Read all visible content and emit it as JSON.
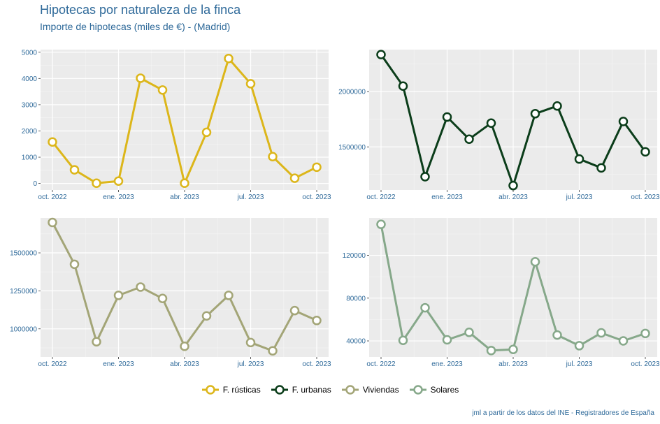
{
  "title": "Hipotecas por naturaleza de la finca",
  "subtitle": "Importe de hipotecas (miles de €) - (Madrid)",
  "caption": "jml a partir de los datos del INE - Registradores de España",
  "chart_data": [
    {
      "type": "line",
      "series_name": "F. rústicas",
      "color": "#dcb61a",
      "x": [
        "2022-10",
        "2022-11",
        "2022-12",
        "2023-01",
        "2023-02",
        "2023-03",
        "2023-04",
        "2023-05",
        "2023-06",
        "2023-07",
        "2023-08",
        "2023-09",
        "2023-10"
      ],
      "values": [
        1580,
        520,
        10,
        90,
        4010,
        3560,
        10,
        1950,
        4760,
        3800,
        1020,
        200,
        620
      ],
      "ylim": [
        -250,
        5100
      ],
      "yticks": [
        0,
        1000,
        2000,
        3000,
        4000,
        5000
      ],
      "ytick_labels": [
        "0",
        "1000",
        "2000",
        "3000",
        "4000",
        "5000"
      ],
      "xticks": [
        "oct. 2022",
        "ene. 2023",
        "abr. 2023",
        "jul. 2023",
        "oct. 2023"
      ]
    },
    {
      "type": "line",
      "series_name": "F. urbanas",
      "color": "#0b3d1a",
      "x": [
        "2022-10",
        "2022-11",
        "2022-12",
        "2023-01",
        "2023-02",
        "2023-03",
        "2023-04",
        "2023-05",
        "2023-06",
        "2023-07",
        "2023-08",
        "2023-09",
        "2023-10"
      ],
      "values": [
        2335000,
        2050000,
        1230000,
        1770000,
        1570000,
        1715000,
        1150000,
        1800000,
        1870000,
        1390000,
        1310000,
        1730000,
        1455000
      ],
      "ylim": [
        1110000,
        2380000
      ],
      "yticks": [
        1500000,
        2000000
      ],
      "ytick_labels": [
        "1500000",
        "2000000"
      ],
      "xticks": [
        "oct. 2022",
        "ene. 2023",
        "abr. 2023",
        "jul. 2023",
        "oct. 2023"
      ]
    },
    {
      "type": "line",
      "series_name": "Viviendas",
      "color": "#a3a577",
      "x": [
        "2022-10",
        "2022-11",
        "2022-12",
        "2023-01",
        "2023-02",
        "2023-03",
        "2023-04",
        "2023-05",
        "2023-06",
        "2023-07",
        "2023-08",
        "2023-09",
        "2023-10"
      ],
      "values": [
        1700000,
        1425000,
        915000,
        1220000,
        1275000,
        1200000,
        885000,
        1085000,
        1220000,
        910000,
        855000,
        1120000,
        1055000
      ],
      "ylim": [
        815000,
        1730000
      ],
      "yticks": [
        1000000,
        1250000,
        1500000
      ],
      "ytick_labels": [
        "1000000",
        "1250000",
        "1500000"
      ],
      "xticks": [
        "oct. 2022",
        "ene. 2023",
        "abr. 2023",
        "jul. 2023",
        "oct. 2023"
      ]
    },
    {
      "type": "line",
      "series_name": "Solares",
      "color": "#86a88a",
      "x": [
        "2022-10",
        "2022-11",
        "2022-12",
        "2023-01",
        "2023-02",
        "2023-03",
        "2023-04",
        "2023-05",
        "2023-06",
        "2023-07",
        "2023-08",
        "2023-09",
        "2023-10"
      ],
      "values": [
        149000,
        40500,
        71000,
        41000,
        48000,
        31000,
        32000,
        114000,
        45500,
        35500,
        47500,
        40000,
        47000
      ],
      "ylim": [
        25000,
        155000
      ],
      "yticks": [
        40000,
        80000,
        120000
      ],
      "ytick_labels": [
        "40000",
        "80000",
        "120000"
      ],
      "xticks": [
        "oct. 2022",
        "ene. 2023",
        "abr. 2023",
        "jul. 2023",
        "oct. 2023"
      ]
    }
  ],
  "legend": [
    {
      "label": "F. rústicas",
      "color": "#dcb61a"
    },
    {
      "label": "F. urbanas",
      "color": "#0b3d1a"
    },
    {
      "label": "Viviendas",
      "color": "#a3a577"
    },
    {
      "label": "Solares",
      "color": "#86a88a"
    }
  ]
}
